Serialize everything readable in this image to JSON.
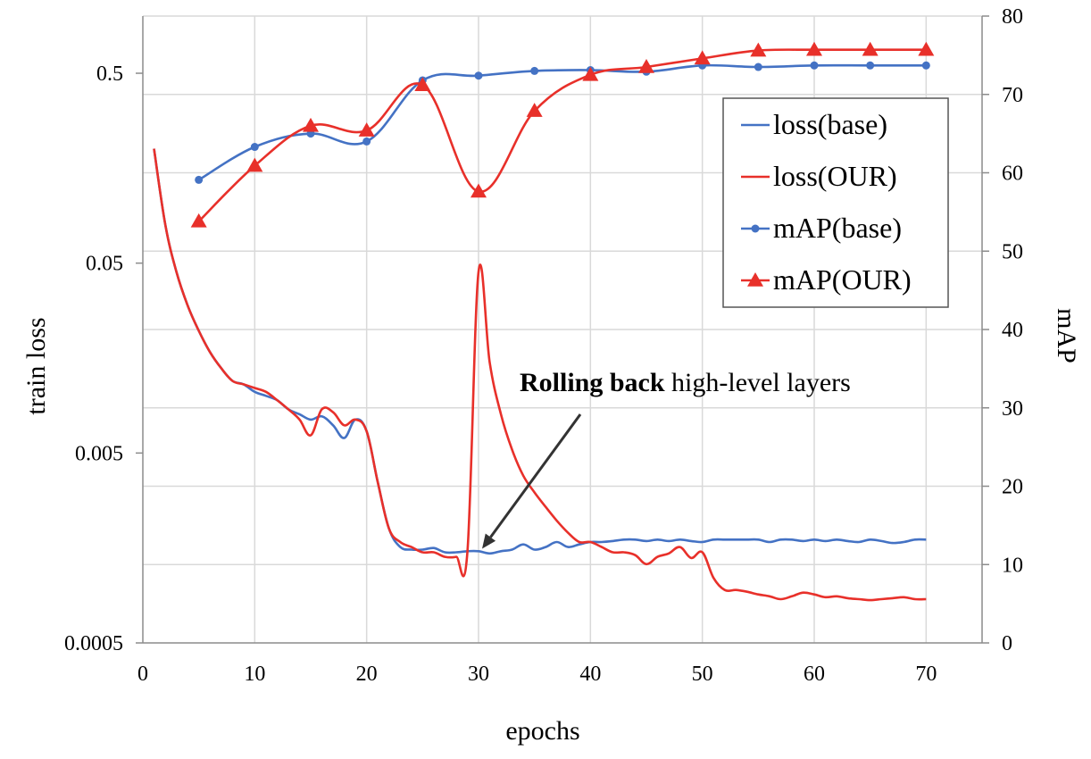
{
  "chart_data": {
    "type": "line",
    "xlabel": "epochs",
    "ylabel_left": "train loss",
    "ylabel_right": "mAP",
    "x_axis": {
      "range": [
        0,
        75
      ],
      "ticks": [
        0,
        10,
        20,
        30,
        40,
        50,
        60,
        70
      ]
    },
    "y_left_axis": {
      "scale": "log",
      "range": [
        0.0005,
        1.0
      ],
      "ticks": [
        0.0005,
        0.005,
        0.05,
        0.5
      ],
      "tick_labels": [
        "0.0005",
        "0.005",
        "0.05",
        "0.5"
      ]
    },
    "y_right_axis": {
      "range": [
        0,
        80
      ],
      "ticks": [
        0,
        10,
        20,
        30,
        40,
        50,
        60,
        70,
        80
      ]
    },
    "grid": {
      "vertical": true,
      "horizontal": true
    },
    "legend": {
      "placement": "top-right",
      "entries": [
        "loss(base)",
        "loss(OUR)",
        "mAP(base)",
        "mAP(OUR)"
      ]
    },
    "annotation": {
      "bold": "Rolling back",
      "text": " high-level layers",
      "points_to": [
        30,
        0.0015
      ]
    },
    "series": [
      {
        "name": "loss(base)",
        "axis": "left",
        "color": "#4472C4",
        "marker": "none",
        "x": [
          1,
          2,
          3,
          4,
          5,
          6,
          7,
          8,
          9,
          10,
          11,
          12,
          13,
          14,
          15,
          16,
          17,
          18,
          19,
          20,
          21,
          22,
          23,
          24,
          25,
          26,
          27,
          28,
          29,
          30,
          31,
          32,
          33,
          34,
          35,
          36,
          37,
          38,
          39,
          40,
          41,
          42,
          43,
          44,
          45,
          46,
          47,
          48,
          49,
          50,
          51,
          52,
          53,
          54,
          55,
          56,
          57,
          58,
          59,
          60,
          61,
          62,
          63,
          64,
          65,
          66,
          67,
          68,
          69,
          70
        ],
        "y": [
          0.2,
          0.08,
          0.045,
          0.03,
          0.022,
          0.017,
          0.014,
          0.012,
          0.0115,
          0.0105,
          0.01,
          0.0095,
          0.0085,
          0.008,
          0.0075,
          0.0078,
          0.007,
          0.006,
          0.0075,
          0.0065,
          0.0035,
          0.002,
          0.0016,
          0.00155,
          0.00155,
          0.00158,
          0.0015,
          0.0015,
          0.00152,
          0.00152,
          0.00148,
          0.00152,
          0.00155,
          0.00165,
          0.00155,
          0.0016,
          0.0017,
          0.0016,
          0.00165,
          0.0017,
          0.0017,
          0.00172,
          0.00175,
          0.00175,
          0.00172,
          0.00175,
          0.00172,
          0.00175,
          0.00172,
          0.0017,
          0.00175,
          0.00175,
          0.00175,
          0.00175,
          0.00175,
          0.0017,
          0.00175,
          0.00175,
          0.00172,
          0.00175,
          0.00172,
          0.00175,
          0.00172,
          0.0017,
          0.00175,
          0.00172,
          0.00168,
          0.0017,
          0.00175,
          0.00175
        ]
      },
      {
        "name": "loss(OUR)",
        "axis": "left",
        "color": "#E8302A",
        "marker": "none",
        "x": [
          1,
          2,
          3,
          4,
          5,
          6,
          7,
          8,
          9,
          10,
          11,
          12,
          13,
          14,
          15,
          16,
          17,
          18,
          19,
          20,
          21,
          22,
          23,
          24,
          25,
          26,
          27,
          28,
          29,
          30,
          31,
          32,
          33,
          34,
          35,
          36,
          37,
          38,
          39,
          40,
          41,
          42,
          43,
          44,
          45,
          46,
          47,
          48,
          49,
          50,
          51,
          52,
          53,
          54,
          55,
          56,
          57,
          58,
          59,
          60,
          61,
          62,
          63,
          64,
          65,
          66,
          67,
          68,
          69,
          70
        ],
        "y": [
          0.2,
          0.08,
          0.045,
          0.03,
          0.022,
          0.017,
          0.014,
          0.012,
          0.0115,
          0.011,
          0.0105,
          0.0095,
          0.0085,
          0.0075,
          0.0062,
          0.0085,
          0.0082,
          0.007,
          0.0075,
          0.0065,
          0.0035,
          0.002,
          0.0017,
          0.0016,
          0.0015,
          0.0015,
          0.00142,
          0.00142,
          0.0015,
          0.045,
          0.015,
          0.008,
          0.0052,
          0.0038,
          0.0031,
          0.0026,
          0.0022,
          0.0019,
          0.0017,
          0.0017,
          0.0016,
          0.0015,
          0.0015,
          0.00145,
          0.0013,
          0.00142,
          0.00148,
          0.0016,
          0.0014,
          0.0015,
          0.0011,
          0.00095,
          0.00095,
          0.00093,
          0.0009,
          0.00088,
          0.00085,
          0.00088,
          0.00092,
          0.0009,
          0.00087,
          0.00088,
          0.00086,
          0.00085,
          0.00084,
          0.00085,
          0.00086,
          0.00087,
          0.00085,
          0.00085
        ]
      },
      {
        "name": "mAP(base)",
        "axis": "right",
        "color": "#4472C4",
        "marker": "circle",
        "x": [
          5,
          10,
          15,
          20,
          25,
          30,
          35,
          40,
          45,
          50,
          55,
          60,
          65,
          70
        ],
        "y": [
          59.1,
          63.3,
          65.0,
          64.0,
          71.8,
          72.4,
          73.0,
          73.1,
          72.9,
          73.7,
          73.5,
          73.7,
          73.7,
          73.7
        ]
      },
      {
        "name": "mAP(OUR)",
        "axis": "right",
        "color": "#E8302A",
        "marker": "triangle",
        "x": [
          5,
          10,
          15,
          20,
          25,
          30,
          35,
          40,
          45,
          50,
          55,
          60,
          65,
          70
        ],
        "y": [
          53.8,
          60.9,
          66.0,
          65.4,
          71.2,
          57.6,
          67.9,
          72.5,
          73.5,
          74.6,
          75.6,
          75.7,
          75.7,
          75.7
        ]
      }
    ]
  }
}
